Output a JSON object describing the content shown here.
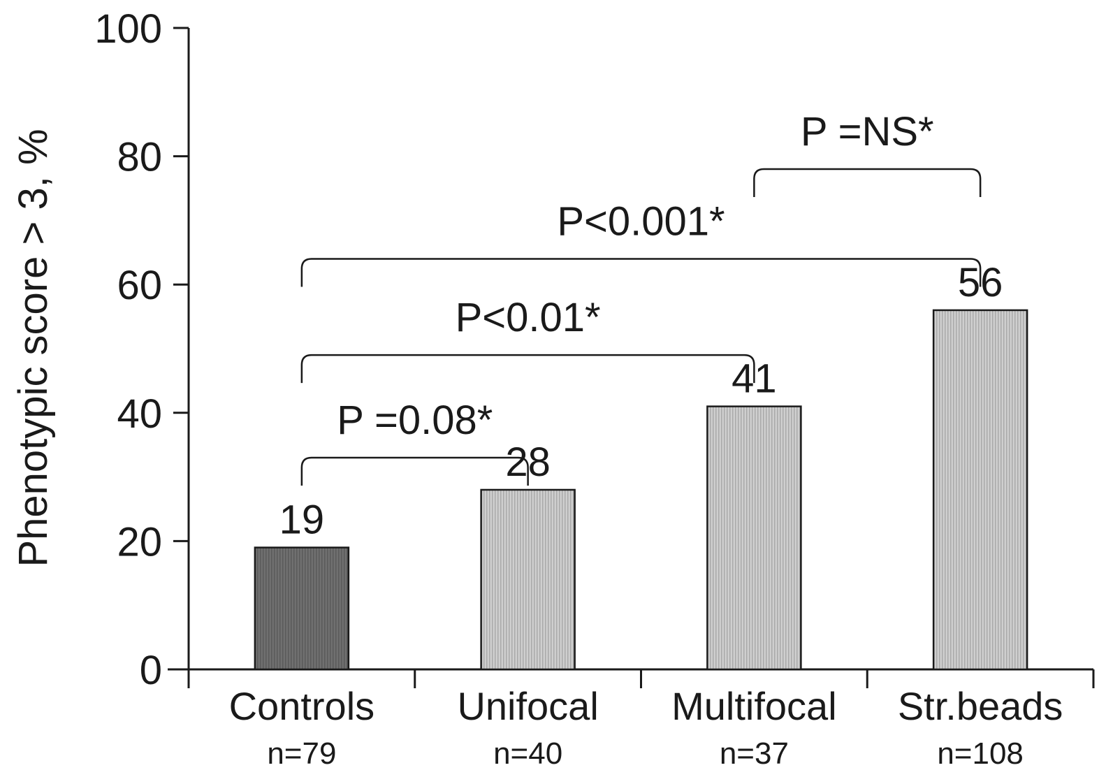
{
  "chart_data": {
    "type": "bar",
    "ylabel": "Phenotypic score > 3, %",
    "ylim": [
      0,
      100
    ],
    "yticks": [
      0,
      20,
      40,
      60,
      80,
      100
    ],
    "categories": [
      "Controls",
      "Unifocal",
      "Multifocal",
      "Str.beads"
    ],
    "sample_sizes": [
      "n=79",
      "n=40",
      "n=37",
      "n=108"
    ],
    "values": [
      19,
      28,
      41,
      56
    ],
    "data_labels": [
      "19",
      "28",
      "41",
      "56"
    ],
    "bar_colors": [
      "#6e6e6e",
      "#c4c4c4",
      "#c4c4c4",
      "#c4c4c4"
    ],
    "comparisons": [
      {
        "from": "Controls",
        "to": "Unifocal",
        "label": "P =0.08*"
      },
      {
        "from": "Controls",
        "to": "Multifocal",
        "label": "P<0.01*"
      },
      {
        "from": "Controls",
        "to": "Str.beads",
        "label": "P<0.001*"
      },
      {
        "from": "Multifocal",
        "to": "Str.beads",
        "label": "P =NS*"
      }
    ],
    "grid": false
  }
}
